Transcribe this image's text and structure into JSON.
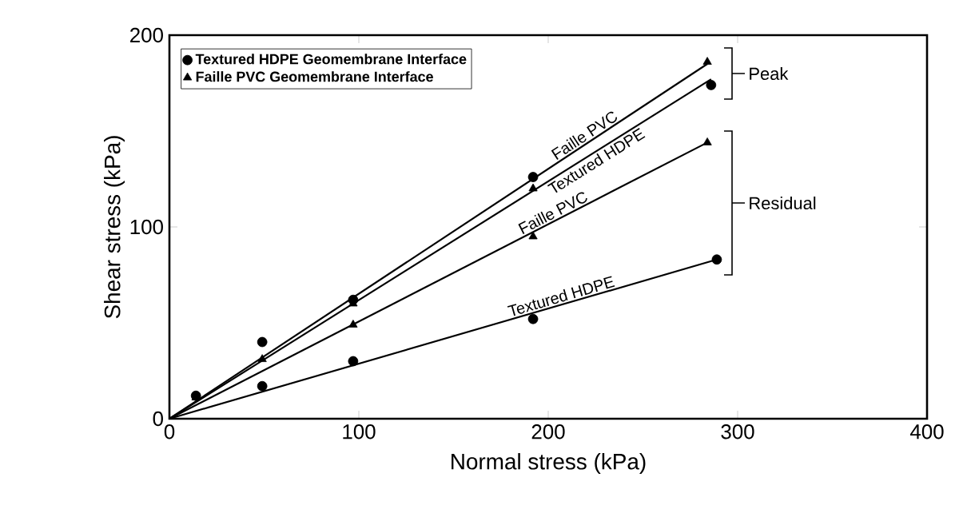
{
  "chart_data": {
    "type": "scatter",
    "xlabel": "Normal stress (kPa)",
    "ylabel": "Shear stress (kPa)",
    "xlim": [
      0,
      400
    ],
    "ylim": [
      0,
      200
    ],
    "xticks": [
      0,
      100,
      200,
      300,
      400
    ],
    "yticks": [
      0,
      100,
      200
    ],
    "legend": "top left",
    "grid": false,
    "series": [
      {
        "name": "Textured HDPE Geomembrane Interface",
        "marker": "circle",
        "color": "#000000",
        "x": [
          14,
          49,
          97,
          192,
          286,
          49,
          97,
          192,
          289
        ],
        "values": [
          12,
          40,
          62,
          126,
          174,
          17,
          30,
          52,
          83
        ]
      },
      {
        "name": "Faille PVC Geomembrane Interface",
        "marker": "triangle",
        "color": "#000000",
        "x": [
          14,
          49,
          97,
          192,
          284,
          97,
          192,
          284
        ],
        "values": [
          11,
          31,
          60,
          120,
          186,
          49,
          95,
          144
        ]
      },
      {
        "name": "Faille PVC",
        "type": "line",
        "marker": "none",
        "color": "#000000",
        "x": [
          0,
          284
        ],
        "values": [
          0,
          185
        ]
      },
      {
        "name": "Textured HDPE",
        "type": "line",
        "marker": "none",
        "color": "#000000",
        "x": [
          0,
          286
        ],
        "values": [
          0,
          177
        ]
      },
      {
        "name": "Faille PVC",
        "type": "line",
        "marker": "none",
        "color": "#000000",
        "x": [
          0,
          284
        ],
        "values": [
          0,
          144
        ]
      },
      {
        "name": "Textured HDPE",
        "type": "line",
        "marker": "none",
        "color": "#000000",
        "x": [
          0,
          289
        ],
        "values": [
          0,
          83
        ]
      }
    ],
    "annotations": [
      "Peak",
      "Residual"
    ]
  }
}
